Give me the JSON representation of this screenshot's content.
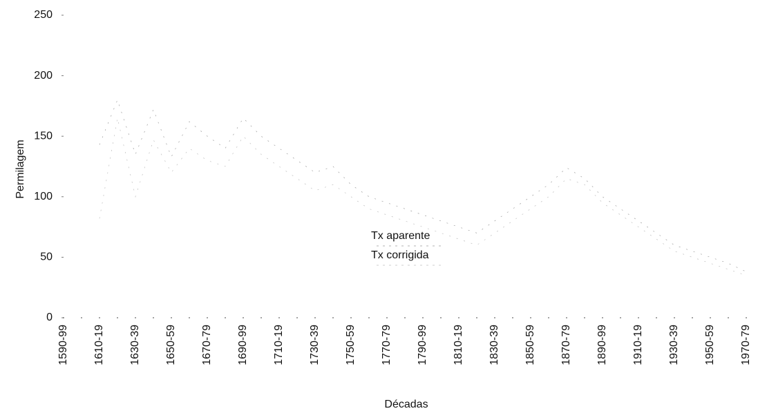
{
  "chart_data": {
    "type": "line",
    "xlabel": "Décadas",
    "ylabel": "Permilagem",
    "categories": [
      "1590-99",
      null,
      "1610-19",
      null,
      "1630-39",
      null,
      "1650-59",
      null,
      "1670-79",
      null,
      "1690-99",
      null,
      "1710-19",
      null,
      "1730-39",
      null,
      "1750-59",
      null,
      "1770-79",
      null,
      "1790-99",
      null,
      "1810-19",
      null,
      "1830-39",
      null,
      "1850-59",
      null,
      "1870-79",
      null,
      "1890-99",
      null,
      "1910-19",
      null,
      "1930-39",
      null,
      "1950-59",
      null,
      "1970-79"
    ],
    "series": [
      {
        "name": "Tx aparente",
        "color": "#9a9a9a",
        "values": [
          null,
          null,
          143,
          180,
          135,
          172,
          133,
          162,
          150,
          140,
          165,
          150,
          140,
          130,
          120,
          125,
          110,
          100,
          95,
          90,
          85,
          80,
          75,
          70,
          80,
          90,
          100,
          110,
          124,
          115,
          100,
          90,
          80,
          70,
          60,
          55,
          50,
          45,
          38
        ]
      },
      {
        "name": "Tx corrigida",
        "color": "#bdbdbd",
        "values": [
          null,
          null,
          82,
          165,
          100,
          147,
          120,
          140,
          130,
          125,
          150,
          135,
          125,
          115,
          105,
          110,
          100,
          90,
          85,
          80,
          75,
          70,
          65,
          60,
          70,
          80,
          90,
          100,
          115,
          110,
          95,
          85,
          75,
          65,
          55,
          50,
          45,
          40,
          35
        ]
      }
    ],
    "ylim": [
      0,
      250
    ],
    "yticks": [
      0,
      50,
      100,
      150,
      200,
      250
    ]
  }
}
